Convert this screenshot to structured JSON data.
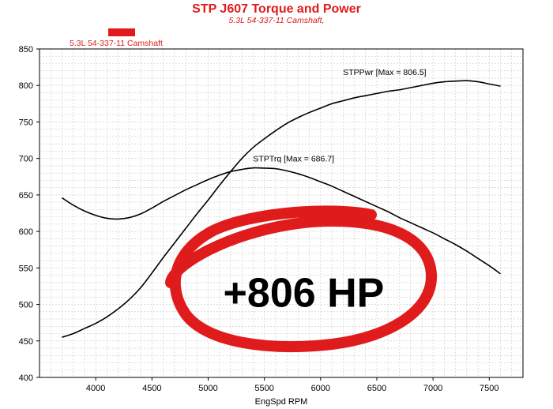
{
  "chart_data": {
    "type": "line",
    "title": "STP J607 Torque and Power",
    "subtitle": "5.3L 54-337-11 Camshaft,",
    "legend": {
      "label": "5.3L 54-337-11 Camshaft",
      "color": "#e01b1b",
      "placement": "top-left"
    },
    "xlabel": "EngSpd RPM",
    "ylabel": "",
    "xlim": [
      3500,
      7800
    ],
    "ylim": [
      400,
      850
    ],
    "xticks": [
      4000,
      4500,
      5000,
      5500,
      6000,
      6500,
      7000,
      7500
    ],
    "yticks": [
      400,
      450,
      500,
      550,
      600,
      650,
      700,
      750,
      800,
      850
    ],
    "grid": true,
    "series": [
      {
        "name": "STPTrq",
        "color": "#000000",
        "x": [
          3700,
          3800,
          3900,
          4000,
          4100,
          4200,
          4300,
          4400,
          4500,
          4600,
          4700,
          4800,
          4900,
          5000,
          5100,
          5200,
          5300,
          5400,
          5500,
          5600,
          5700,
          5800,
          5900,
          6000,
          6100,
          6200,
          6300,
          6400,
          6500,
          6600,
          6700,
          6800,
          6900,
          7000,
          7100,
          7200,
          7300,
          7400,
          7500,
          7600
        ],
        "values": [
          646,
          636,
          628,
          622,
          618,
          617,
          619,
          624,
          632,
          641,
          649,
          657,
          664,
          671,
          677,
          682,
          685,
          687,
          686.7,
          686,
          683,
          679,
          674,
          668,
          662,
          655,
          648,
          641,
          634,
          627,
          619,
          612,
          605,
          598,
          590,
          582,
          573,
          563,
          553,
          542
        ]
      },
      {
        "name": "STPPwr",
        "color": "#000000",
        "x": [
          3700,
          3800,
          3900,
          4000,
          4100,
          4200,
          4300,
          4400,
          4500,
          4600,
          4700,
          4800,
          4900,
          5000,
          5100,
          5200,
          5300,
          5400,
          5500,
          5600,
          5700,
          5800,
          5900,
          6000,
          6100,
          6200,
          6300,
          6400,
          6500,
          6600,
          6700,
          6800,
          6900,
          7000,
          7100,
          7200,
          7300,
          7400,
          7500,
          7600
        ],
        "values": [
          455,
          460,
          467,
          474,
          483,
          494,
          507,
          523,
          543,
          564,
          584,
          604,
          624,
          643,
          663,
          682,
          700,
          715,
          727,
          738,
          748,
          756,
          763,
          769,
          775,
          779,
          783,
          786,
          789,
          792,
          794,
          797,
          800,
          803,
          805,
          806,
          806.5,
          805,
          802,
          799
        ]
      }
    ],
    "annotations": [
      {
        "text": "STPPwr [Max = 806.5]",
        "x": 6200,
        "y": 810
      },
      {
        "text": "STPTrq [Max = 686.7]",
        "x": 5400,
        "y": 695
      },
      {
        "text": "+806 HP",
        "x": 5850,
        "y": 510
      }
    ]
  }
}
